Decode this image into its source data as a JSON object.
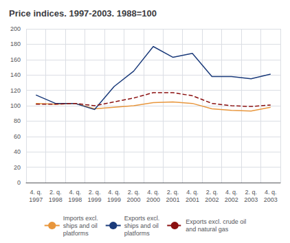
{
  "chart_data": {
    "type": "line",
    "title": "Price indices. 1997-2003. 1988=100",
    "categories": [
      "4. q.\n1997",
      "2. q.\n1998",
      "4. q.\n1998",
      "2. q.\n1999",
      "4. q.\n1999",
      "2. q.\n2000",
      "4. q.\n2000",
      "2. q.\n2001",
      "4. q.\n2001",
      "2. q.\n2002",
      "4. q.\n2002",
      "2. q.\n2003",
      "4. q.\n2003"
    ],
    "series": [
      {
        "name": "Imports excl.\nships and oil\nplatforms",
        "color": "#e8963c",
        "line_style": "solid",
        "values": [
          103,
          102,
          103,
          96,
          98,
          100,
          104,
          105,
          103,
          96,
          94,
          93,
          98
        ]
      },
      {
        "name": "Exports excl.\nships and oil\nplatforms",
        "color": "#1a3a7a",
        "line_style": "solid",
        "values": [
          114,
          103,
          103,
          95,
          125,
          145,
          177,
          163,
          168,
          138,
          138,
          135,
          141
        ]
      },
      {
        "name": "Exports excl. crude oil\nand natural gas",
        "color": "#8b1010",
        "line_style": "dashed",
        "values": [
          102,
          102,
          103,
          100,
          105,
          110,
          117,
          117,
          113,
          103,
          100,
          99,
          101
        ]
      }
    ],
    "ylim": [
      0,
      200
    ],
    "yticks": [
      0,
      20,
      40,
      60,
      80,
      100,
      120,
      140,
      160,
      180,
      200
    ],
    "grid": true,
    "legend": "bottom"
  }
}
